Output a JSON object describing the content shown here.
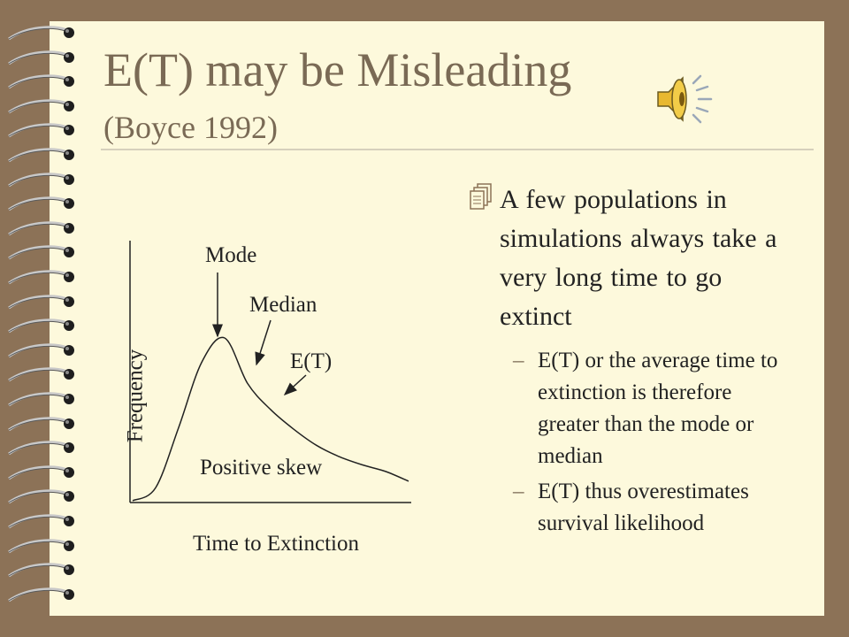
{
  "slide": {
    "title": "E(T) may be Misleading",
    "subtitle": "(Boyce 1992)",
    "bullet": "A few populations in simulations always take a very long time to go extinct",
    "sub_bullets": [
      "E(T) or the average time to extinction is therefore greater than the mode or median",
      "E(T) thus overestimates survival likelihood"
    ],
    "icons": {
      "audio": "speaker-icon",
      "bullet": "notebook-pages-icon"
    }
  },
  "chart_data": {
    "type": "line",
    "title": "",
    "xlabel": "Time to Extinction",
    "ylabel": "Frequency",
    "series": [
      {
        "values": [
          0,
          0.08,
          0.45,
          0.85,
          1.0,
          0.72,
          0.56,
          0.44,
          0.34,
          0.27,
          0.22,
          0.18,
          0.12
        ]
      }
    ],
    "annotations": {
      "mode": "Mode",
      "median": "Median",
      "mean": "E(T)",
      "shape": "Positive skew"
    }
  },
  "colors": {
    "background": "#8c7257",
    "paper": "#fdf9dc",
    "title": "#7a6a55",
    "text": "#222222"
  }
}
